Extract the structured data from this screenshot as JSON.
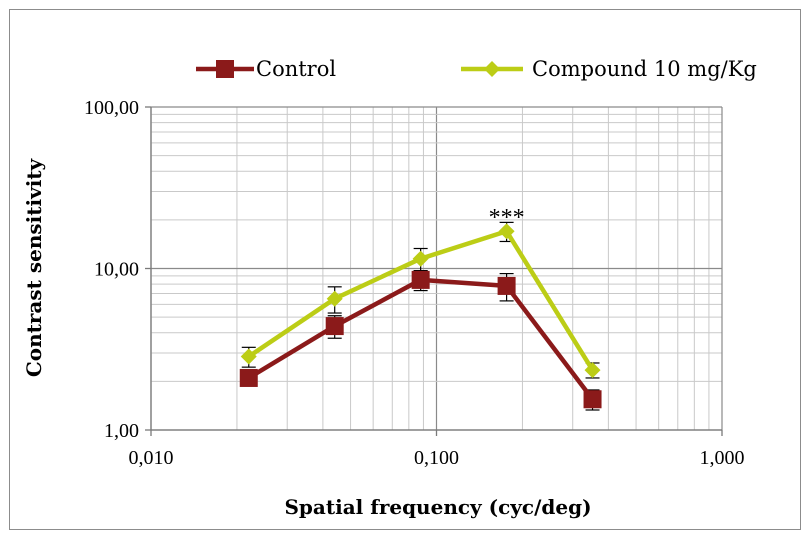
{
  "chart_data": {
    "type": "line",
    "xscale": "log",
    "yscale": "log",
    "xlim": [
      0.01,
      1.0
    ],
    "ylim": [
      1.0,
      100.0
    ],
    "xlabel": "Spatial frequency (cyc/deg)",
    "ylabel": "Contrast sensitivity",
    "x_ticks": [
      "0,010",
      "0,100",
      "1,000"
    ],
    "y_ticks": [
      "1,00",
      "10,00",
      "100,00"
    ],
    "grid": true,
    "legend_position": "top",
    "series": [
      {
        "name": "Control",
        "color": "#8b1a1a",
        "marker": "square",
        "x": [
          0.022,
          0.044,
          0.088,
          0.176,
          0.352
        ],
        "y": [
          2.1,
          4.4,
          8.5,
          7.8,
          1.55
        ],
        "err": [
          0.2,
          0.7,
          1.2,
          1.5,
          0.22
        ]
      },
      {
        "name": "Compound 10 mg/Kg",
        "color": "#bccd16",
        "marker": "diamond",
        "x": [
          0.022,
          0.044,
          0.088,
          0.176,
          0.352
        ],
        "y": [
          2.85,
          6.5,
          11.5,
          17.0,
          2.35
        ],
        "err": [
          0.4,
          1.2,
          1.8,
          2.3,
          0.25
        ]
      }
    ],
    "annotations": [
      {
        "text": "***",
        "x": 0.176,
        "y": 24
      }
    ]
  }
}
